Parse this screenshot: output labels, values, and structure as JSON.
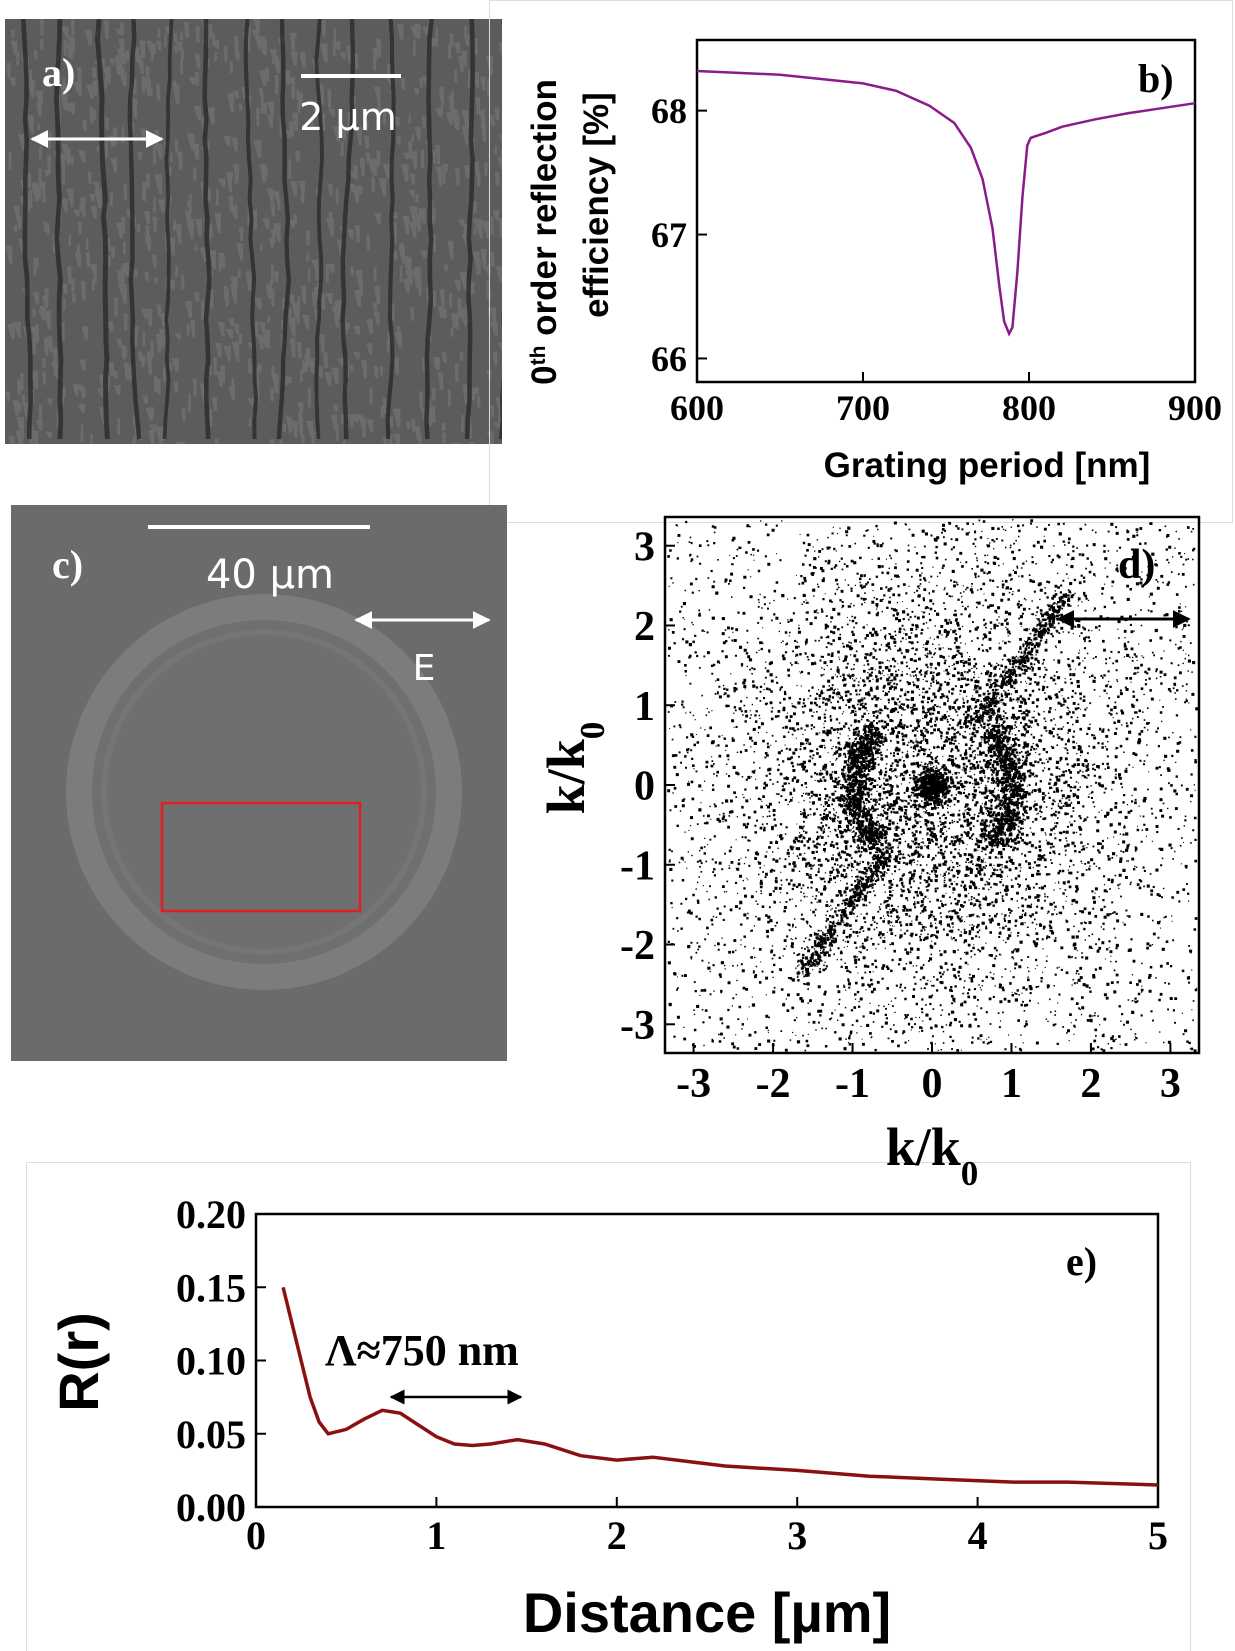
{
  "images": [
    {
      "label": "a)",
      "scale_label": "2 µm"
    },
    {
      "label": "c)",
      "scale_label": "40 µm",
      "field_label": "E"
    }
  ],
  "chart_data": [
    {
      "type": "line",
      "label": "b)",
      "color": "#8b1a8b",
      "x": [
        600,
        650,
        700,
        720,
        740,
        755,
        765,
        772,
        778,
        782,
        785,
        788,
        790,
        793,
        796,
        799,
        801,
        803,
        810,
        820,
        840,
        860,
        880,
        900
      ],
      "values": [
        68.32,
        68.29,
        68.22,
        68.16,
        68.04,
        67.9,
        67.7,
        67.45,
        67.05,
        66.6,
        66.3,
        66.2,
        66.25,
        66.7,
        67.3,
        67.72,
        67.78,
        67.79,
        67.82,
        67.87,
        67.93,
        67.98,
        68.02,
        68.06
      ],
      "xlim": [
        600,
        900
      ],
      "ylim": [
        65.81,
        68.57
      ],
      "xticks": [
        600,
        700,
        800,
        900
      ],
      "yticks": [
        66,
        67,
        68
      ],
      "xlabel": "Grating period [nm]",
      "ylabel": {
        "base": "0",
        "sup": "th",
        "line1": " order reflection",
        "line2": "efficiency [%]"
      }
    },
    {
      "type": "image",
      "label": "d)",
      "xlim": [
        -3.36,
        3.36
      ],
      "ylim": [
        -3.36,
        3.36
      ],
      "xticks": [
        -3,
        -2,
        -1,
        0,
        1,
        2,
        3
      ],
      "yticks": [
        -3,
        -2,
        -1,
        0,
        1,
        2,
        3
      ],
      "xlabel": {
        "base": "k/k",
        "sub": "0"
      },
      "ylabel": {
        "base": "k/k",
        "sub": "0"
      }
    },
    {
      "type": "line",
      "label": "e)",
      "color": "#8b1111",
      "x": [
        0.15,
        0.2,
        0.25,
        0.3,
        0.35,
        0.4,
        0.5,
        0.6,
        0.7,
        0.8,
        0.9,
        1.0,
        1.1,
        1.2,
        1.3,
        1.45,
        1.6,
        1.8,
        2.0,
        2.2,
        2.4,
        2.6,
        3.0,
        3.4,
        3.8,
        4.2,
        4.5,
        5.0
      ],
      "values": [
        0.15,
        0.125,
        0.1,
        0.075,
        0.058,
        0.05,
        0.053,
        0.06,
        0.066,
        0.064,
        0.056,
        0.048,
        0.043,
        0.042,
        0.043,
        0.046,
        0.043,
        0.035,
        0.032,
        0.034,
        0.031,
        0.028,
        0.025,
        0.021,
        0.019,
        0.017,
        0.017,
        0.015
      ],
      "xlim": [
        0,
        5
      ],
      "ylim": [
        0,
        0.2
      ],
      "xticks": [
        0,
        1,
        2,
        3,
        4,
        5
      ],
      "yticks": [
        {
          "value": 0,
          "label": "0.00"
        },
        {
          "value": 0.05,
          "label": "0.05"
        },
        {
          "value": 0.1,
          "label": "0.10"
        },
        {
          "value": 0.15,
          "label": "0.15"
        },
        {
          "value": 0.2,
          "label": "0.20"
        }
      ],
      "annotation": "Λ≈750 nm",
      "xlabel": "Distance [µm]",
      "ylabel": "R(r)"
    }
  ]
}
